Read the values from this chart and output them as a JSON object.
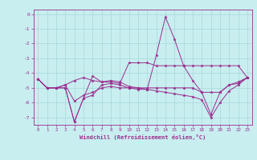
{
  "xlabel": "Windchill (Refroidissement éolien,°C)",
  "background_color": "#c8eef0",
  "line_color": "#9b2d8e",
  "grid_color": "#a8d8da",
  "x": [
    0,
    1,
    2,
    3,
    4,
    5,
    6,
    7,
    8,
    9,
    10,
    11,
    12,
    13,
    14,
    15,
    16,
    17,
    18,
    19,
    20,
    21,
    22,
    23
  ],
  "lines": [
    [
      -4.4,
      -5.0,
      -5.0,
      -4.8,
      -4.5,
      -4.3,
      -4.5,
      -4.6,
      -4.6,
      -4.7,
      -3.3,
      -3.3,
      -3.3,
      -3.5,
      -3.5,
      -3.5,
      -3.5,
      -3.5,
      -3.5,
      -3.5,
      -3.5,
      -3.5,
      -3.5,
      -4.3
    ],
    [
      -4.4,
      -5.0,
      -5.0,
      -4.8,
      -5.9,
      -5.5,
      -5.3,
      -5.0,
      -4.9,
      -5.0,
      -5.0,
      -5.0,
      -5.0,
      -5.0,
      -5.0,
      -5.0,
      -5.0,
      -5.0,
      -5.3,
      -6.8,
      -5.3,
      -4.8,
      -4.7,
      -4.3
    ],
    [
      -4.4,
      -5.0,
      -5.0,
      -5.0,
      -7.3,
      -5.7,
      -5.5,
      -4.8,
      -4.7,
      -4.8,
      -5.0,
      -5.1,
      -5.1,
      -5.2,
      -5.3,
      -5.4,
      -5.5,
      -5.6,
      -5.8,
      -7.0,
      -6.0,
      -5.2,
      -4.8,
      -4.3
    ],
    [
      -4.4,
      -5.0,
      -5.0,
      -5.0,
      -7.3,
      -5.7,
      -4.2,
      -4.6,
      -4.5,
      -4.6,
      -4.9,
      -5.0,
      -5.1,
      -2.8,
      -0.2,
      -1.7,
      -3.5,
      -4.5,
      -5.3,
      -5.3,
      -5.3,
      -4.8,
      -4.6,
      -4.3
    ]
  ],
  "ylim": [
    -7.5,
    0.3
  ],
  "yticks": [
    0,
    -1,
    -2,
    -3,
    -4,
    -5,
    -6,
    -7
  ],
  "xticks": [
    0,
    1,
    2,
    3,
    4,
    5,
    6,
    7,
    8,
    9,
    10,
    11,
    12,
    13,
    14,
    15,
    16,
    17,
    18,
    19,
    20,
    21,
    22,
    23
  ],
  "figsize": [
    3.2,
    2.0
  ],
  "dpi": 100
}
